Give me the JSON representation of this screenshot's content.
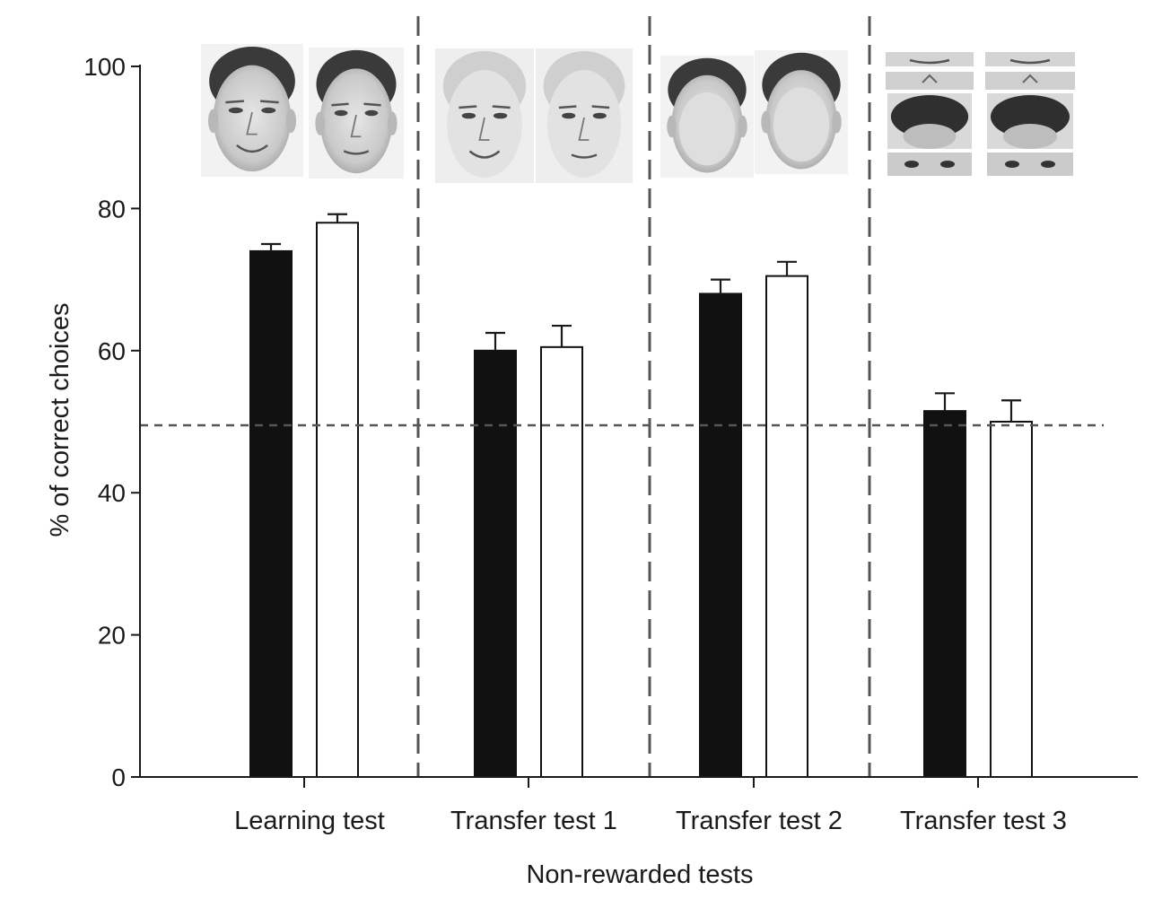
{
  "chart_data": {
    "type": "bar",
    "xlabel": "Non-rewarded tests",
    "ylabel": "% of correct choices",
    "ylim": [
      0,
      100
    ],
    "yticks": [
      0,
      20,
      40,
      60,
      80,
      100
    ],
    "categories": [
      "Learning test",
      "Transfer test 1",
      "Transfer test 2",
      "Transfer test 3"
    ],
    "series": [
      {
        "fill": "#111111",
        "values": [
          74,
          60,
          68,
          51.5
        ],
        "errors": [
          1,
          2.5,
          2,
          2.5
        ]
      },
      {
        "fill": "#ffffff",
        "values": [
          78,
          60.5,
          70.5,
          50
        ],
        "errors": [
          1.2,
          3,
          2,
          3
        ]
      }
    ],
    "reference_line": {
      "y": 49.5,
      "style": "dashed"
    },
    "group_separators": "dashed",
    "grid": false,
    "legend": "none",
    "stimulus_images": [
      "whole-face-pair",
      "inner-features-pair",
      "outer-features-pair",
      "scrambled-features-pair"
    ]
  }
}
